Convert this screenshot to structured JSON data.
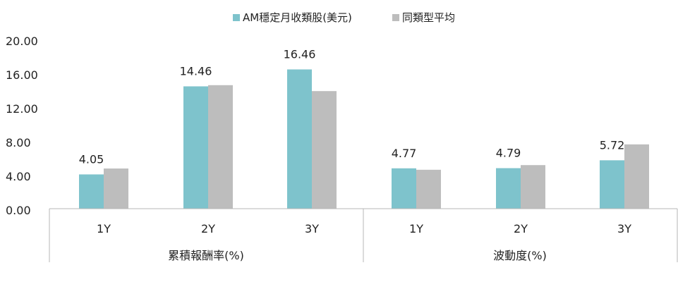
{
  "chart_data": {
    "type": "bar",
    "groups": [
      {
        "label": "累積報酬率(%)",
        "categories": [
          "1Y",
          "2Y",
          "3Y"
        ]
      },
      {
        "label": "波動度(%)",
        "categories": [
          "1Y",
          "2Y",
          "3Y"
        ]
      }
    ],
    "series": [
      {
        "name": "AM穩定月收類股(美元)",
        "color": "#7EC3CC",
        "values": [
          4.05,
          14.46,
          16.46,
          4.77,
          4.79,
          5.72
        ]
      },
      {
        "name": "同類型平均",
        "color": "#BDBDBD",
        "values": [
          4.75,
          14.6,
          13.9,
          4.6,
          5.15,
          7.6
        ]
      }
    ],
    "data_labels": [
      "4.05",
      "14.46",
      "16.46",
      "4.77",
      "4.79",
      "5.72"
    ],
    "yticks": [
      "0.00",
      "4.00",
      "8.00",
      "12.00",
      "16.00",
      "20.00"
    ],
    "ylim": [
      0,
      20
    ],
    "legend_position": "top-center",
    "grid": false
  }
}
